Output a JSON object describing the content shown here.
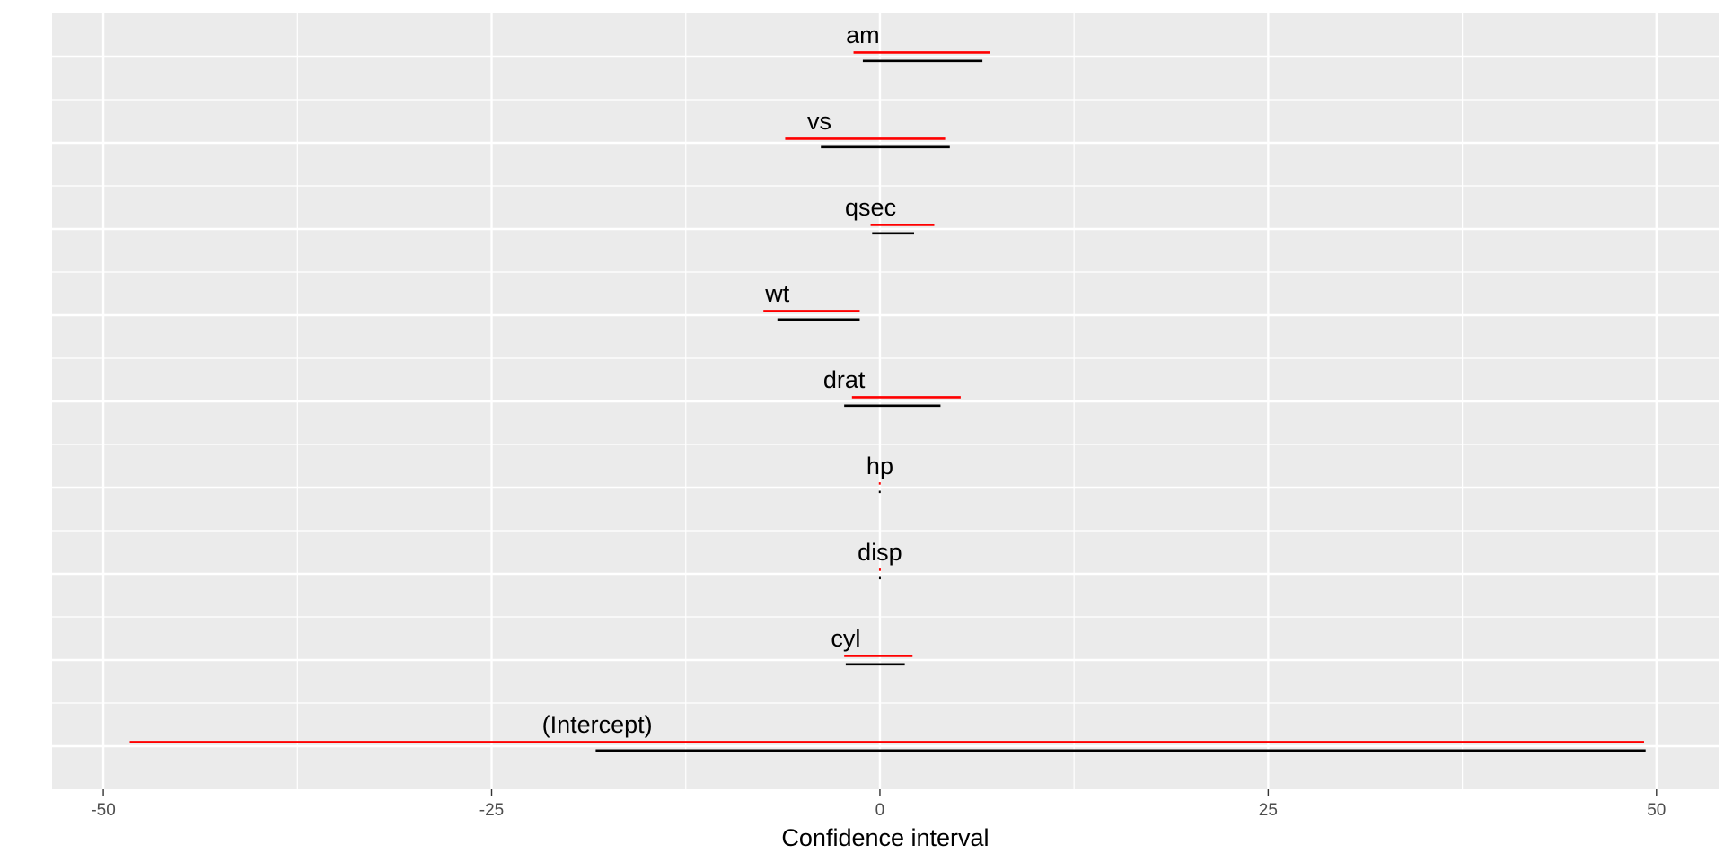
{
  "chart_data": {
    "type": "interval",
    "xlabel": "Confidence interval",
    "xlim": [
      -53.3,
      54.0
    ],
    "x_ticks": [
      -50,
      -25,
      0,
      25,
      50
    ],
    "x_tick_labels": [
      "-50",
      "-25",
      "0",
      "25",
      "50"
    ],
    "grid": true,
    "legend": "none",
    "categories": [
      "(Intercept)",
      "cyl",
      "disp",
      "hp",
      "drat",
      "wt",
      "qsec",
      "vs",
      "am"
    ],
    "label_x": [
      -18.2,
      -2.2,
      0.0,
      0.0,
      -2.3,
      -6.6,
      -0.6,
      -3.9,
      -1.1
    ],
    "series": [
      {
        "color": "#ff0000",
        "lower": [
          -48.3,
          -2.3,
          -0.03,
          -0.06,
          -1.8,
          -7.5,
          -0.6,
          -6.1,
          -1.7
        ],
        "upper": [
          49.2,
          2.1,
          0.03,
          0.04,
          5.2,
          -1.3,
          3.5,
          4.2,
          7.1
        ]
      },
      {
        "color": "#000000",
        "lower": [
          -18.3,
          -2.2,
          -0.02,
          -0.04,
          -2.3,
          -6.6,
          -0.5,
          -3.8,
          -1.1
        ],
        "upper": [
          49.3,
          1.6,
          0.02,
          0.02,
          3.9,
          -1.3,
          2.2,
          4.5,
          6.6
        ]
      }
    ]
  }
}
